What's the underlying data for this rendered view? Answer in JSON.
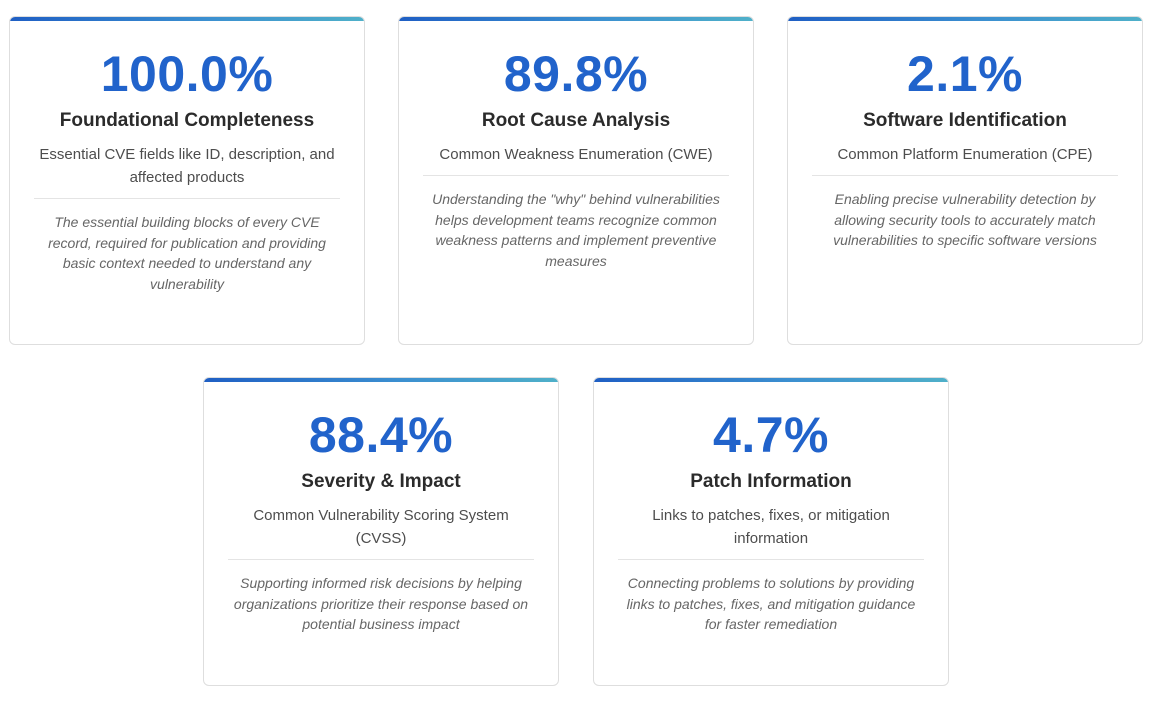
{
  "cards": [
    {
      "metric": "100.0%",
      "title": "Foundational Completeness",
      "subtitle": "Essential CVE fields like ID, description, and affected products",
      "description": "The essential building blocks of every CVE record, required for publication and providing basic context needed to understand any vulnerability"
    },
    {
      "metric": "89.8%",
      "title": "Root Cause Analysis",
      "subtitle": "Common Weakness Enumeration (CWE)",
      "description": "Understanding the \"why\" behind vulnerabilities helps development teams recognize common weakness patterns and implement preventive measures"
    },
    {
      "metric": "2.1%",
      "title": "Software Identification",
      "subtitle": "Common Platform Enumeration (CPE)",
      "description": "Enabling precise vulnerability detection by allowing security tools to accurately match vulnerabilities to specific software versions"
    },
    {
      "metric": "88.4%",
      "title": "Severity & Impact",
      "subtitle": "Common Vulnerability Scoring System (CVSS)",
      "description": "Supporting informed risk decisions by helping organizations prioritize their response based on potential business impact"
    },
    {
      "metric": "4.7%",
      "title": "Patch Information",
      "subtitle": "Links to patches, fixes, or mitigation information",
      "description": "Connecting problems to solutions by providing links to patches, fixes, and mitigation guidance for faster remediation"
    }
  ],
  "colors": {
    "metric": "#2163cb",
    "accent_start": "#1f5fc4",
    "accent_end": "#4fb0c9"
  }
}
